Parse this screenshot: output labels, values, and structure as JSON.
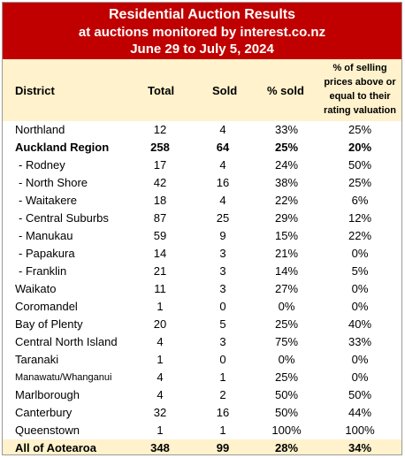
{
  "title": {
    "line1": "Residential Auction Results",
    "line2": "at auctions monitored by interest.co.nz",
    "line3": "June 29 to July 5, 2024"
  },
  "header": {
    "district": "District",
    "total": "Total",
    "sold": "Sold",
    "pct_sold": "% sold",
    "above_line1": "% of selling",
    "above_line2": "prices above or",
    "above_line3": "equal to their",
    "above_line4": "rating valuation"
  },
  "rows": [
    {
      "district": "Northland",
      "total": "12",
      "sold": "4",
      "pct_sold": "33%",
      "above": "25%",
      "kind": "normal"
    },
    {
      "district": "Auckland Region",
      "total": "258",
      "sold": "64",
      "pct_sold": "25%",
      "above": "20%",
      "kind": "region"
    },
    {
      "district": "- Rodney",
      "total": "17",
      "sold": "4",
      "pct_sold": "24%",
      "above": "50%",
      "kind": "sub"
    },
    {
      "district": "- North Shore",
      "total": "42",
      "sold": "16",
      "pct_sold": "38%",
      "above": "25%",
      "kind": "sub"
    },
    {
      "district": "- Waitakere",
      "total": "18",
      "sold": "4",
      "pct_sold": "22%",
      "above": "6%",
      "kind": "sub"
    },
    {
      "district": "- Central Suburbs",
      "total": "87",
      "sold": "25",
      "pct_sold": "29%",
      "above": "12%",
      "kind": "sub"
    },
    {
      "district": "- Manukau",
      "total": "59",
      "sold": "9",
      "pct_sold": "15%",
      "above": "22%",
      "kind": "sub"
    },
    {
      "district": "- Papakura",
      "total": "14",
      "sold": "3",
      "pct_sold": "21%",
      "above": "0%",
      "kind": "sub"
    },
    {
      "district": "- Franklin",
      "total": "21",
      "sold": "3",
      "pct_sold": "14%",
      "above": "5%",
      "kind": "sub"
    },
    {
      "district": "Waikato",
      "total": "11",
      "sold": "3",
      "pct_sold": "27%",
      "above": "0%",
      "kind": "normal"
    },
    {
      "district": "Coromandel",
      "total": "1",
      "sold": "0",
      "pct_sold": "0%",
      "above": "0%",
      "kind": "normal"
    },
    {
      "district": "Bay of Plenty",
      "total": "20",
      "sold": "5",
      "pct_sold": "25%",
      "above": "40%",
      "kind": "normal"
    },
    {
      "district": "Central North Island",
      "total": "4",
      "sold": "3",
      "pct_sold": "75%",
      "above": "33%",
      "kind": "normal"
    },
    {
      "district": "Taranaki",
      "total": "1",
      "sold": "0",
      "pct_sold": "0%",
      "above": "0%",
      "kind": "normal"
    },
    {
      "district": "Manawatu/Whanganui",
      "total": "4",
      "sold": "1",
      "pct_sold": "25%",
      "above": "0%",
      "kind": "small"
    },
    {
      "district": "Marlborough",
      "total": "4",
      "sold": "2",
      "pct_sold": "50%",
      "above": "50%",
      "kind": "normal"
    },
    {
      "district": "Canterbury",
      "total": "32",
      "sold": "16",
      "pct_sold": "50%",
      "above": "44%",
      "kind": "normal"
    },
    {
      "district": "Queenstown",
      "total": "1",
      "sold": "1",
      "pct_sold": "100%",
      "above": "100%",
      "kind": "normal"
    },
    {
      "district": "All of Aotearoa",
      "total": "348",
      "sold": "99",
      "pct_sold": "28%",
      "above": "34%",
      "kind": "total-row"
    }
  ],
  "colors": {
    "title_band": "#c00000",
    "header_band": "#fff2cc"
  }
}
